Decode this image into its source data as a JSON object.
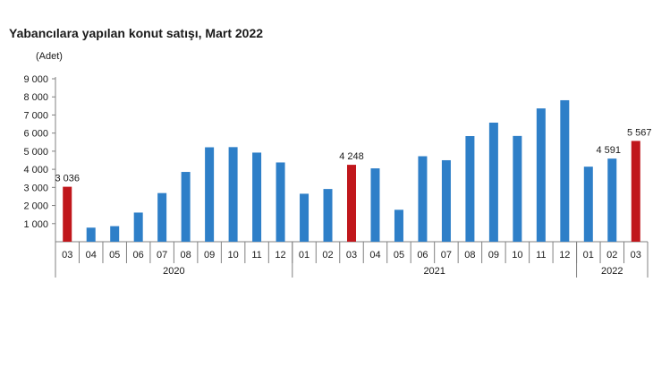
{
  "chart_data": {
    "type": "bar",
    "title": "Yabancılara yapılan konut satışı, Mart 2022",
    "ylabel": "(Adet)",
    "xlabel": "",
    "ylim": [
      0,
      9000
    ],
    "yticks": [
      1000,
      2000,
      3000,
      4000,
      5000,
      6000,
      7000,
      8000,
      9000
    ],
    "ytick_labels": [
      "1 000",
      "2 000",
      "3 000",
      "4 000",
      "5 000",
      "6 000",
      "7 000",
      "8 000",
      "9 000"
    ],
    "grid": false,
    "categories": [
      "03",
      "04",
      "05",
      "06",
      "07",
      "08",
      "09",
      "10",
      "11",
      "12",
      "01",
      "02",
      "03",
      "04",
      "05",
      "06",
      "07",
      "08",
      "09",
      "10",
      "11",
      "12",
      "01",
      "02",
      "03"
    ],
    "groups": [
      {
        "label": "2020",
        "count": 10
      },
      {
        "label": "2021",
        "count": 12
      },
      {
        "label": "2022",
        "count": 3
      }
    ],
    "values": [
      3036,
      777,
      860,
      1610,
      2687,
      3855,
      5216,
      5225,
      4923,
      4378,
      2650,
      2912,
      4248,
      4052,
      1763,
      4722,
      4501,
      5835,
      6577,
      5842,
      7363,
      7815,
      4145,
      4591,
      5567
    ],
    "highlighted": [
      0,
      12,
      22,
      23,
      24
    ],
    "red_bars": [
      0,
      12,
      24
    ],
    "data_labels": {
      "0": "3 036",
      "12": "4 248",
      "23": "4 591",
      "24": "5 567"
    },
    "colors": {
      "bar": "#2e7fc8",
      "highlight": "#c0171c",
      "axis": "#808080",
      "text": "#1a1a1a"
    }
  }
}
